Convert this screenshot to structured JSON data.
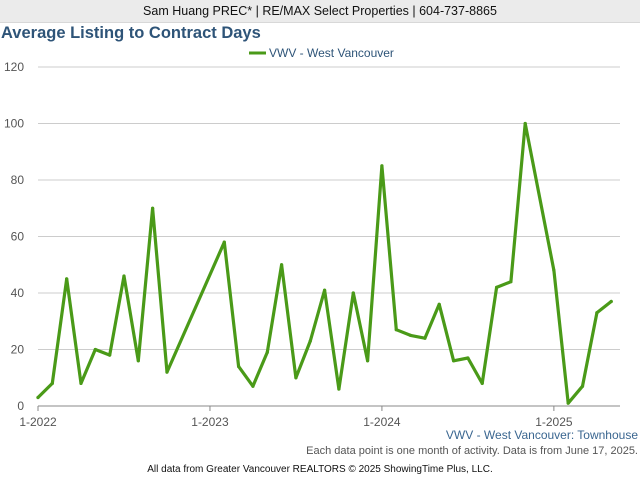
{
  "header": {
    "agent_line": "Sam Huang PREC* | RE/MAX Select Properties | 604-737-8865"
  },
  "colors": {
    "series": "#4a9a18",
    "title": "#2e5478",
    "grid": "#cccccc"
  },
  "chart_data": {
    "type": "line",
    "title": "Average Listing to Contract Days",
    "subtitle": "VWV - West Vancouver: Townhouse",
    "xlabel": "",
    "ylabel": "",
    "ylim": [
      0,
      120
    ],
    "yticks": [
      0,
      20,
      40,
      60,
      80,
      100,
      120
    ],
    "xticks": [
      {
        "label": "1-2022",
        "month_index": 0
      },
      {
        "label": "1-2023",
        "month_index": 12
      },
      {
        "label": "1-2024",
        "month_index": 24
      },
      {
        "label": "1-2025",
        "month_index": 36
      }
    ],
    "grid": true,
    "legend_position": "top-center",
    "series": [
      {
        "name": "VWV - West Vancouver",
        "points": [
          {
            "m": 0,
            "v": 3
          },
          {
            "m": 1,
            "v": 8
          },
          {
            "m": 2,
            "v": 45
          },
          {
            "m": 3,
            "v": 8
          },
          {
            "m": 4,
            "v": 20
          },
          {
            "m": 5,
            "v": 18
          },
          {
            "m": 6,
            "v": 46
          },
          {
            "m": 7,
            "v": 16
          },
          {
            "m": 8,
            "v": 70
          },
          {
            "m": 9,
            "v": 12
          },
          {
            "m": 13,
            "v": 58
          },
          {
            "m": 14,
            "v": 14
          },
          {
            "m": 15,
            "v": 7
          },
          {
            "m": 16,
            "v": 19
          },
          {
            "m": 17,
            "v": 50
          },
          {
            "m": 18,
            "v": 10
          },
          {
            "m": 19,
            "v": 23
          },
          {
            "m": 20,
            "v": 41
          },
          {
            "m": 21,
            "v": 6
          },
          {
            "m": 22,
            "v": 40
          },
          {
            "m": 23,
            "v": 16
          },
          {
            "m": 24,
            "v": 85
          },
          {
            "m": 25,
            "v": 27
          },
          {
            "m": 26,
            "v": 25
          },
          {
            "m": 27,
            "v": 24
          },
          {
            "m": 28,
            "v": 36
          },
          {
            "m": 29,
            "v": 16
          },
          {
            "m": 30,
            "v": 17
          },
          {
            "m": 31,
            "v": 8
          },
          {
            "m": 32,
            "v": 42
          },
          {
            "m": 33,
            "v": 44
          },
          {
            "m": 34,
            "v": 100
          },
          {
            "m": 36,
            "v": 48
          },
          {
            "m": 37,
            "v": 1
          },
          {
            "m": 38,
            "v": 7
          },
          {
            "m": 39,
            "v": 33
          },
          {
            "m": 40,
            "v": 37
          }
        ]
      }
    ]
  },
  "footnote": "Each data point is one month of activity. Data is from June 17, 2025.",
  "footer": "All data from Greater Vancouver REALTORS © 2025 ShowingTime Plus, LLC."
}
